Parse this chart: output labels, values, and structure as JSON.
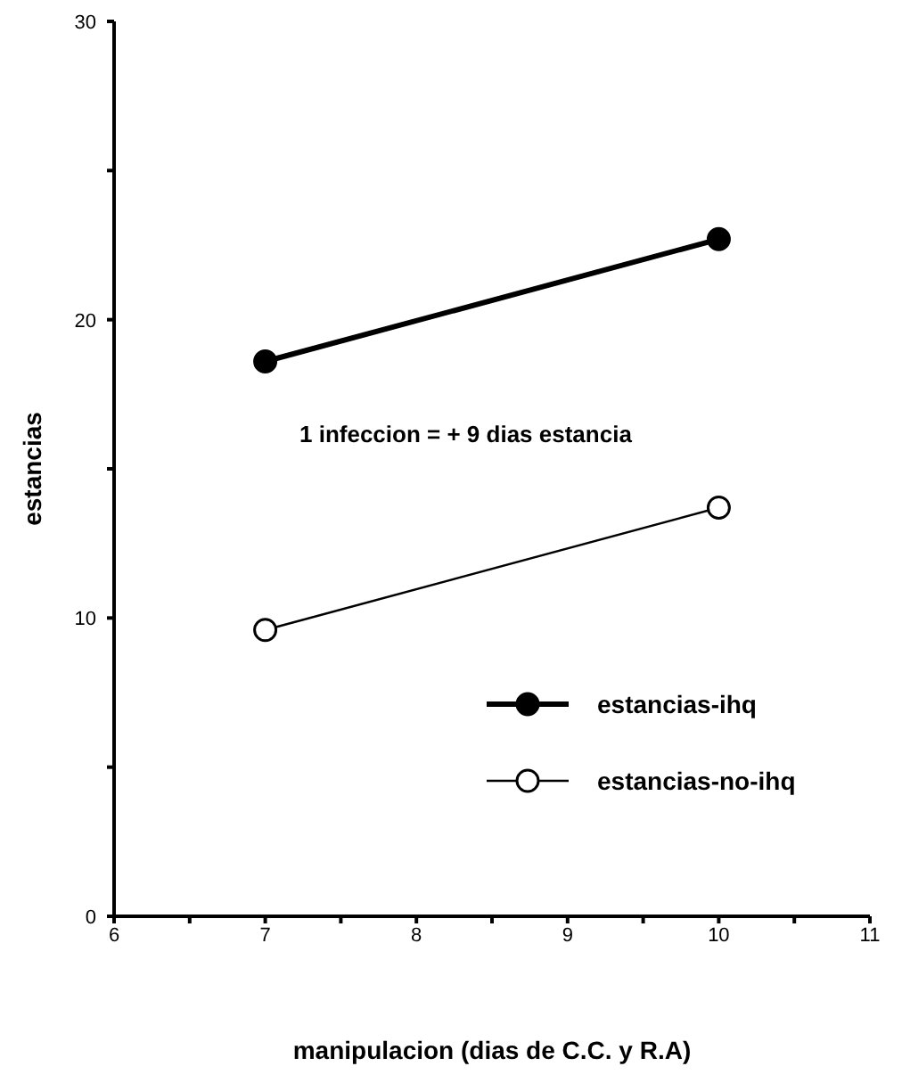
{
  "chart_data": {
    "type": "line",
    "xlabel": "manipulacion (dias de C.C. y R.A)",
    "ylabel": "estancias",
    "x": [
      7,
      10
    ],
    "series": [
      {
        "name": "estancias-ihq",
        "color": "#000000",
        "values": [
          18.6,
          22.7
        ]
      },
      {
        "name": "estancias-no-ihq",
        "color": "#000000",
        "values": [
          9.6,
          13.7
        ]
      }
    ],
    "xlim": [
      6,
      11
    ],
    "ylim": [
      0,
      30
    ],
    "xticks": [
      6,
      {
        "value": 6.5,
        "label": null
      },
      7,
      {
        "value": 7.5,
        "label": null
      },
      8,
      {
        "value": 8.5,
        "label": null
      },
      9,
      {
        "value": 9.5,
        "label": null
      },
      10,
      {
        "value": 10.5,
        "label": null
      },
      11
    ],
    "yticks": [
      0,
      {
        "value": 5,
        "label": null
      },
      10,
      {
        "value": 15,
        "label": null
      },
      20,
      {
        "value": 25,
        "label": null
      },
      30
    ],
    "annotations": [
      "1 infeccion = + 9 dias estancia"
    ],
    "marker": "circle",
    "grid": false,
    "legend": "right"
  }
}
